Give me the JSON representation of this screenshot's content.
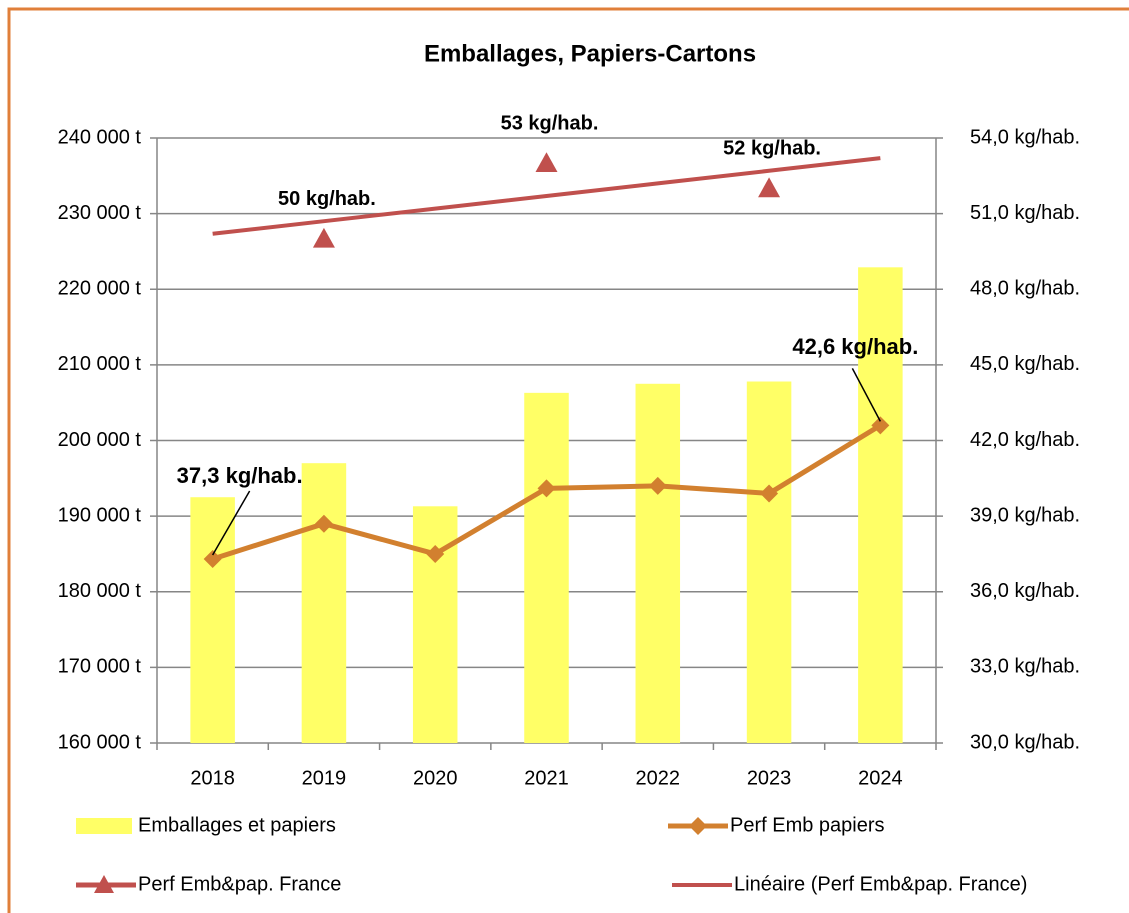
{
  "chart_data": {
    "type": "bar_line",
    "title": "Emballages, Papiers-Cartons",
    "categories": [
      "2018",
      "2019",
      "2020",
      "2021",
      "2022",
      "2023",
      "2024"
    ],
    "ylim": [
      160000,
      240000
    ],
    "yticks": [
      {
        "value": 160000,
        "label": "160 000 t"
      },
      {
        "value": 170000,
        "label": "170 000 t"
      },
      {
        "value": 180000,
        "label": "180 000 t"
      },
      {
        "value": 190000,
        "label": "190 000 t"
      },
      {
        "value": 200000,
        "label": "200 000 t"
      },
      {
        "value": 210000,
        "label": "210 000 t"
      },
      {
        "value": 220000,
        "label": "220 000 t"
      },
      {
        "value": 230000,
        "label": "230 000 t"
      },
      {
        "value": 240000,
        "label": "240 000 t"
      }
    ],
    "y2lim": [
      30,
      54
    ],
    "y2ticks": [
      {
        "value": 30,
        "label": "30,0 kg/hab."
      },
      {
        "value": 33,
        "label": "33,0 kg/hab."
      },
      {
        "value": 36,
        "label": "36,0 kg/hab."
      },
      {
        "value": 39,
        "label": "39,0 kg/hab."
      },
      {
        "value": 42,
        "label": "42,0 kg/hab."
      },
      {
        "value": 45,
        "label": "45,0 kg/hab."
      },
      {
        "value": 48,
        "label": "48,0 kg/hab."
      },
      {
        "value": 51,
        "label": "51,0 kg/hab."
      },
      {
        "value": 54,
        "label": "54,0 kg/hab."
      }
    ],
    "grid": true,
    "series": [
      {
        "name": "Emballages et papiers",
        "kind": "bar",
        "color": "#ffff66",
        "values": [
          192500,
          197000,
          191300,
          206300,
          207500,
          207800,
          222900
        ]
      },
      {
        "name": "Perf Emb papiers",
        "kind": "line-diamond",
        "color": "#d2802f",
        "axis": "y2",
        "values": [
          37.3,
          38.7,
          37.5,
          40.1,
          40.2,
          39.9,
          42.6
        ],
        "value_labels": [
          "37,3 kg/hab.",
          null,
          null,
          null,
          null,
          null,
          "42,6 kg/hab."
        ]
      },
      {
        "name": "Perf Emb&pap. France",
        "kind": "triangle",
        "color": "#c0504d",
        "axis": "y2",
        "values": [
          null,
          50,
          null,
          53,
          null,
          52,
          null
        ],
        "value_labels": [
          null,
          "50 kg/hab.",
          null,
          "53 kg/hab.",
          null,
          "52 kg/hab.",
          null
        ]
      },
      {
        "name": "Linéaire (Perf Emb&pap. France)",
        "kind": "line",
        "color": "#c0504d",
        "axis": "y2",
        "values": [
          50.2,
          50.7,
          51.2,
          51.7,
          52.2,
          52.7,
          53.2
        ]
      }
    ]
  }
}
